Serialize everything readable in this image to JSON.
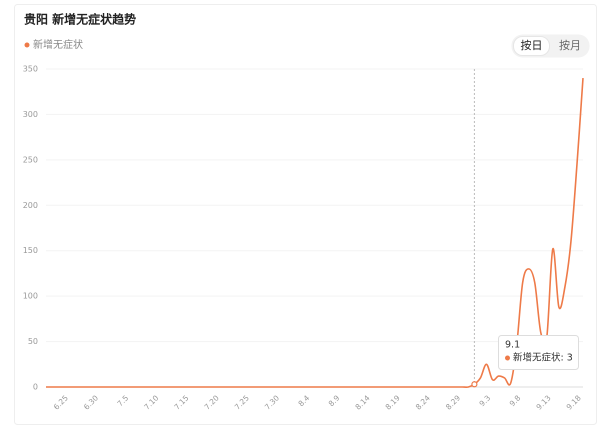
{
  "chart_data": {
    "type": "line",
    "title": "贵阳 新增无症状趋势",
    "buttons": [
      "按日",
      "按月"
    ],
    "categories": [
      null,
      null,
      null,
      "6.25",
      null,
      null,
      null,
      null,
      "6.30",
      null,
      null,
      null,
      null,
      "7.5",
      null,
      null,
      null,
      null,
      "7.10",
      null,
      null,
      null,
      null,
      "7.15",
      null,
      null,
      null,
      null,
      "7.20",
      null,
      null,
      null,
      null,
      "7.25",
      null,
      null,
      null,
      null,
      "7.30",
      null,
      null,
      null,
      null,
      "8.4",
      null,
      null,
      null,
      null,
      "8.9",
      null,
      null,
      null,
      null,
      "8.14",
      null,
      null,
      null,
      null,
      "8.19",
      null,
      null,
      null,
      null,
      "8.24",
      null,
      null,
      null,
      null,
      "8.29",
      null,
      null,
      null,
      null,
      "9.3",
      null,
      null,
      null,
      null,
      "9.8",
      null,
      null,
      null,
      null,
      "9.13",
      null,
      null,
      null,
      null,
      "9.18",
      null
    ],
    "series": [
      {
        "name": "新增无症状",
        "color": "#ee7a48",
        "values": [
          0,
          0,
          0,
          0,
          0,
          0,
          0,
          0,
          0,
          0,
          0,
          0,
          0,
          0,
          0,
          0,
          0,
          0,
          0,
          0,
          0,
          0,
          0,
          0,
          0,
          0,
          0,
          0,
          0,
          0,
          0,
          0,
          0,
          0,
          0,
          0,
          0,
          0,
          0,
          0,
          0,
          0,
          0,
          0,
          0,
          0,
          0,
          0,
          0,
          0,
          0,
          0,
          0,
          0,
          0,
          0,
          0,
          0,
          0,
          0,
          0,
          0,
          0,
          0,
          0,
          0,
          0,
          0,
          0,
          0,
          0,
          3,
          10,
          25,
          8,
          12,
          10,
          4,
          45,
          115,
          130,
          115,
          60,
          55,
          152,
          88,
          110,
          160,
          245,
          340
        ]
      }
    ],
    "ylim": [
      0,
      350
    ],
    "yticks": [
      0,
      50,
      100,
      150,
      200,
      250,
      300,
      350
    ],
    "grid": true,
    "tooltip": {
      "index": 71,
      "title": "9.1",
      "text": "新增无症状: 3"
    }
  }
}
